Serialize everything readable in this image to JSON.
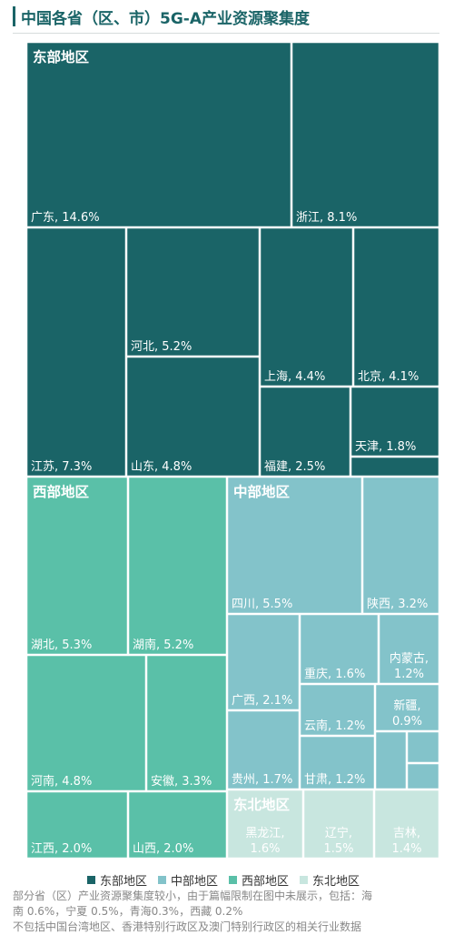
{
  "title": "中国各省（区、市）5G-A产业资源聚集度",
  "chart_data": {
    "type": "treemap",
    "title": "中国各省（区、市）5G-A产业资源聚集度",
    "unit": "%",
    "colors": {
      "东部地区": "#1a6467",
      "中部地区": "#83c3ca",
      "西部地区": "#5ac0a8",
      "东北地区": "#c8e6df"
    },
    "regions": [
      {
        "name": "东部地区",
        "items": [
          {
            "name": "广东",
            "value": 14.6,
            "label": "广东, 14.6%"
          },
          {
            "name": "浙江",
            "value": 8.1,
            "label": "浙江, 8.1%"
          },
          {
            "name": "江苏",
            "value": 7.3,
            "label": "江苏, 7.3%"
          },
          {
            "name": "河北",
            "value": 5.2,
            "label": "河北, 5.2%"
          },
          {
            "name": "山东",
            "value": 4.8,
            "label": "山东, 4.8%"
          },
          {
            "name": "上海",
            "value": 4.4,
            "label": "上海, 4.4%"
          },
          {
            "name": "北京",
            "value": 4.1,
            "label": "北京, 4.1%"
          },
          {
            "name": "福建",
            "value": 2.5,
            "label": "福建, 2.5%"
          },
          {
            "name": "天津",
            "value": 1.8,
            "label": "天津, 1.8%"
          },
          {
            "name": "海南",
            "value": 0.6,
            "label": ""
          }
        ]
      },
      {
        "name": "西部地区",
        "items": [
          {
            "name": "湖北",
            "value": 5.3,
            "label": "湖北, 5.3%"
          },
          {
            "name": "湖南",
            "value": 5.2,
            "label": "湖南, 5.2%"
          },
          {
            "name": "河南",
            "value": 4.8,
            "label": "河南, 4.8%"
          },
          {
            "name": "安徽",
            "value": 3.3,
            "label": "安徽, 3.3%"
          },
          {
            "name": "江西",
            "value": 2.0,
            "label": "江西, 2.0%"
          },
          {
            "name": "山西",
            "value": 2.0,
            "label": "山西, 2.0%"
          }
        ]
      },
      {
        "name": "中部地区",
        "items": [
          {
            "name": "四川",
            "value": 5.5,
            "label": "四川, 5.5%"
          },
          {
            "name": "陕西",
            "value": 3.2,
            "label": "陕西, 3.2%"
          },
          {
            "name": "广西",
            "value": 2.1,
            "label": "广西, 2.1%"
          },
          {
            "name": "重庆",
            "value": 1.6,
            "label": "重庆, 1.6%"
          },
          {
            "name": "内蒙古",
            "value": 1.2,
            "label": "内蒙古, 1.2%"
          },
          {
            "name": "贵州",
            "value": 1.7,
            "label": "贵州, 1.7%"
          },
          {
            "name": "云南",
            "value": 1.2,
            "label": "云南, 1.2%"
          },
          {
            "name": "甘肃",
            "value": 1.2,
            "label": "甘肃, 1.2%"
          },
          {
            "name": "新疆",
            "value": 0.9,
            "label": "新疆, 0.9%"
          },
          {
            "name": "宁夏",
            "value": 0.5,
            "label": ""
          },
          {
            "name": "青海",
            "value": 0.3,
            "label": ""
          },
          {
            "name": "西藏",
            "value": 0.2,
            "label": ""
          }
        ]
      },
      {
        "name": "东北地区",
        "items": [
          {
            "name": "黑龙江",
            "value": 1.6,
            "label": "黑龙江, 1.6%"
          },
          {
            "name": "辽宁",
            "value": 1.5,
            "label": "辽宁, 1.5%"
          },
          {
            "name": "吉林",
            "value": 1.4,
            "label": "吉林, 1.4%"
          }
        ]
      }
    ],
    "legend": [
      "东部地区",
      "中部地区",
      "西部地区",
      "东北地区"
    ],
    "legend_position": "bottom"
  },
  "footnote": [
    "部分省（区）产业资源聚集度较小，由于篇幅限制在图中未展示，包括：海",
    "南 0.6%，宁夏 0.5%，青海0.3%，西藏 0.2%",
    "不包括中国台湾地区、香港特别行政区及澳门特别行政区的相关行业数据"
  ]
}
